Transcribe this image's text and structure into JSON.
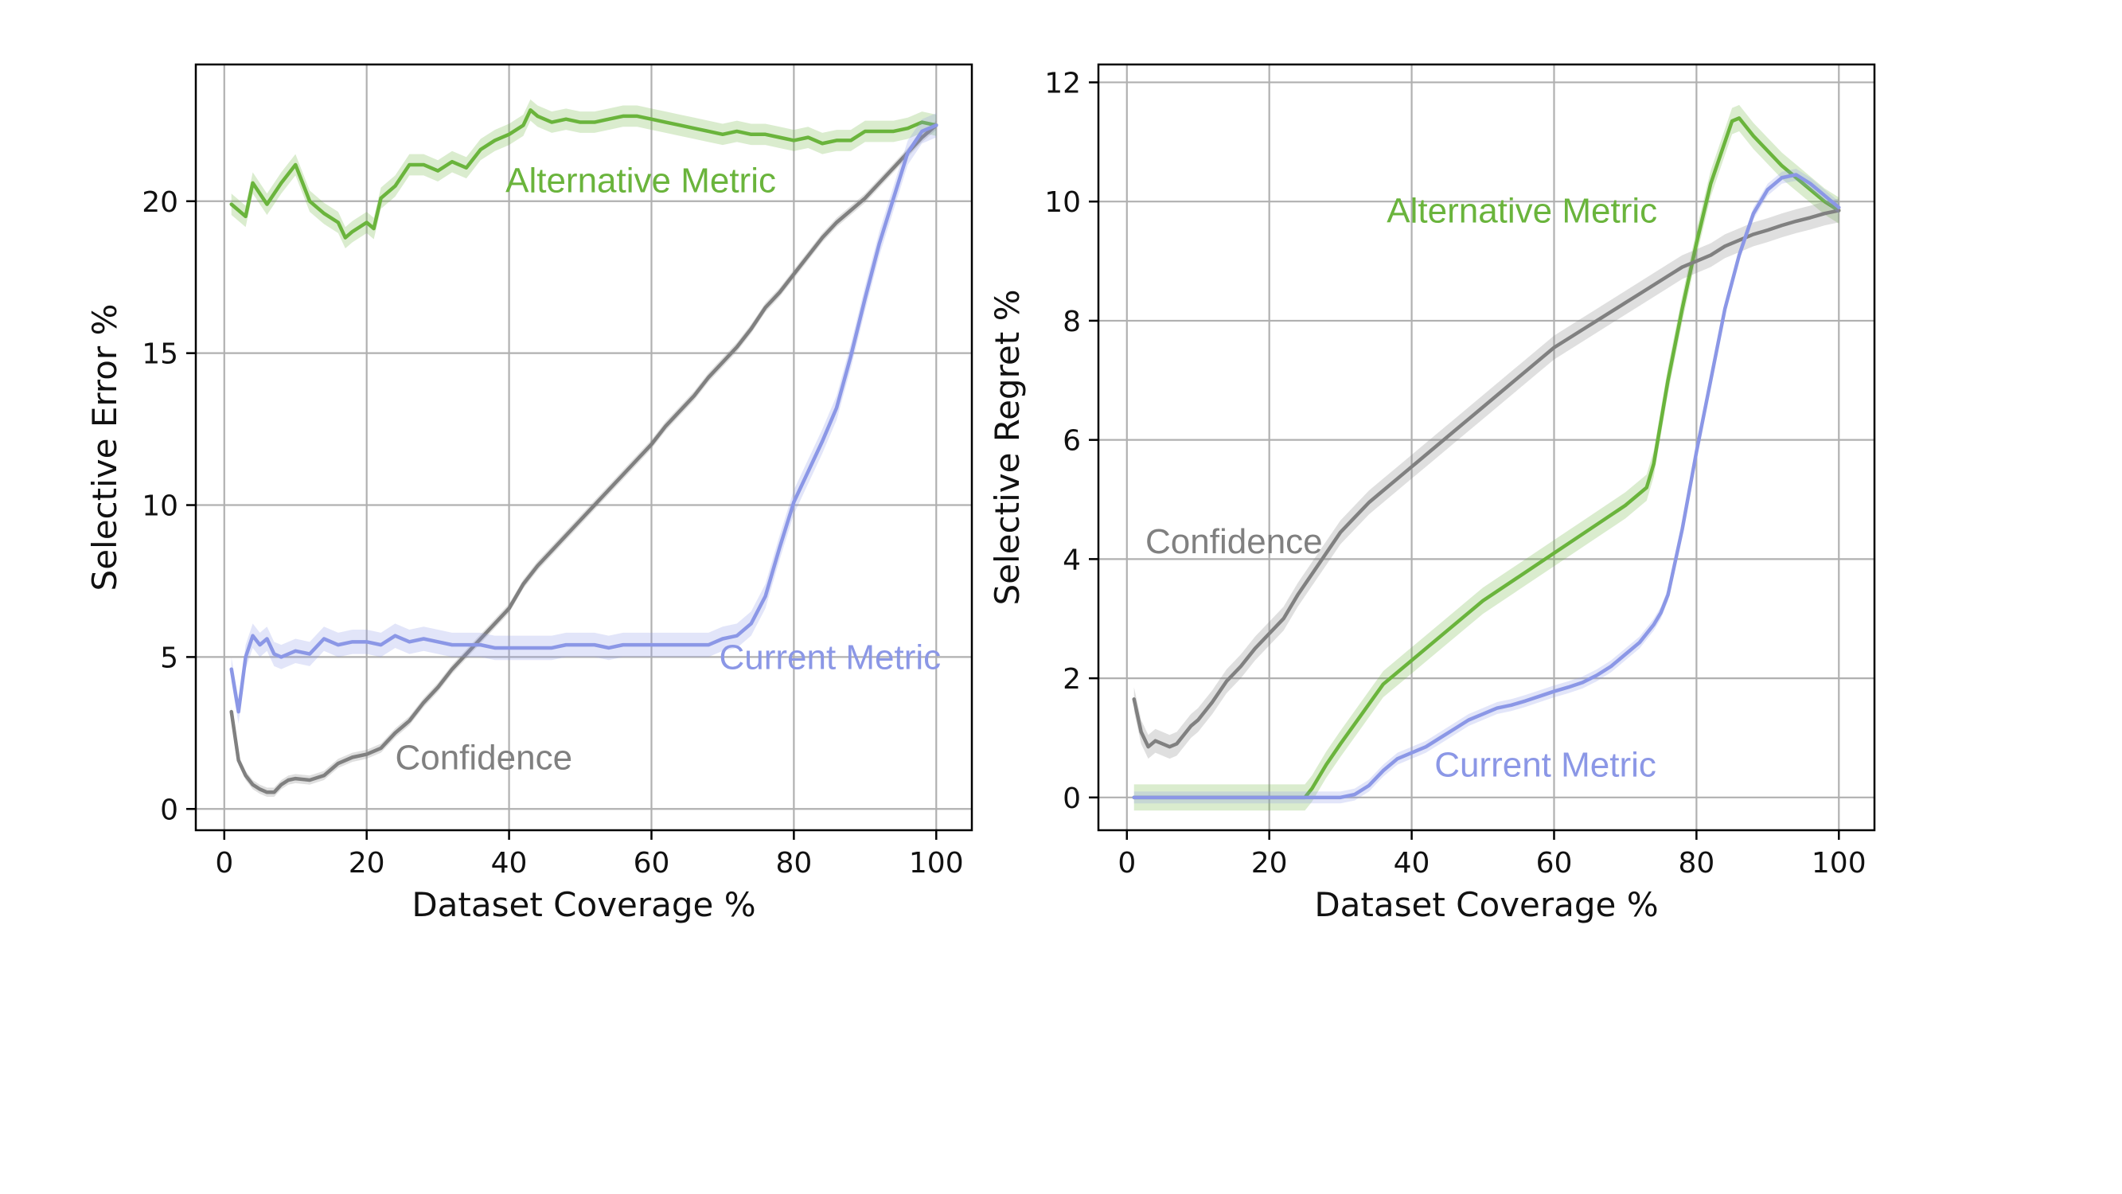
{
  "chart_data": [
    {
      "type": "line",
      "xlabel": "Dataset Coverage %",
      "ylabel": "Selective Error %",
      "xlim": [
        -4,
        105
      ],
      "ylim": [
        -0.7,
        24.5
      ],
      "xticks": [
        0,
        20,
        40,
        60,
        80,
        100
      ],
      "yticks": [
        0,
        5,
        10,
        15,
        20
      ],
      "grid": true,
      "series": [
        {
          "name": "Alternative Metric",
          "color": "#6ab43c",
          "band": 0.35,
          "x": [
            1,
            3,
            4,
            6,
            8,
            10,
            12,
            14,
            16,
            17,
            18,
            20,
            21,
            22,
            24,
            26,
            28,
            30,
            32,
            34,
            36,
            38,
            40,
            42,
            43,
            44,
            46,
            48,
            50,
            52,
            54,
            56,
            58,
            60,
            62,
            64,
            66,
            68,
            70,
            72,
            74,
            76,
            78,
            80,
            82,
            84,
            86,
            88,
            90,
            92,
            94,
            96,
            98,
            100
          ],
          "y": [
            19.9,
            19.5,
            20.6,
            19.9,
            20.6,
            21.2,
            20.0,
            19.6,
            19.3,
            18.8,
            19.0,
            19.3,
            19.1,
            20.1,
            20.5,
            21.2,
            21.2,
            21.0,
            21.3,
            21.1,
            21.7,
            22.0,
            22.2,
            22.5,
            23.0,
            22.8,
            22.6,
            22.7,
            22.6,
            22.6,
            22.7,
            22.8,
            22.8,
            22.7,
            22.6,
            22.5,
            22.4,
            22.3,
            22.2,
            22.3,
            22.2,
            22.2,
            22.1,
            22.0,
            22.1,
            21.9,
            22.0,
            22.0,
            22.3,
            22.3,
            22.3,
            22.4,
            22.6,
            22.5
          ]
        },
        {
          "name": "Confidence",
          "color": "#808080",
          "band": 0.15,
          "x": [
            1,
            2,
            3,
            4,
            5,
            6,
            7,
            8,
            9,
            10,
            12,
            14,
            16,
            18,
            20,
            22,
            24,
            26,
            28,
            30,
            32,
            34,
            36,
            38,
            40,
            42,
            44,
            46,
            48,
            50,
            52,
            54,
            56,
            58,
            60,
            62,
            64,
            66,
            68,
            70,
            72,
            74,
            76,
            78,
            80,
            82,
            84,
            86,
            88,
            90,
            92,
            94,
            96,
            98,
            100
          ],
          "y": [
            3.2,
            1.6,
            1.1,
            0.8,
            0.65,
            0.55,
            0.55,
            0.8,
            0.95,
            1.0,
            0.95,
            1.1,
            1.5,
            1.7,
            1.8,
            2.0,
            2.5,
            2.9,
            3.5,
            4.0,
            4.6,
            5.1,
            5.6,
            6.1,
            6.6,
            7.4,
            8.0,
            8.5,
            9.0,
            9.5,
            10.0,
            10.5,
            11.0,
            11.5,
            12.0,
            12.6,
            13.1,
            13.6,
            14.2,
            14.7,
            15.2,
            15.8,
            16.5,
            17.0,
            17.6,
            18.2,
            18.8,
            19.3,
            19.7,
            20.1,
            20.6,
            21.1,
            21.6,
            22.1,
            22.5
          ]
        },
        {
          "name": "Current Metric",
          "color": "#8b97e6",
          "band": 0.4,
          "x": [
            1,
            2,
            3,
            4,
            5,
            6,
            7,
            8,
            10,
            12,
            14,
            16,
            18,
            20,
            22,
            24,
            26,
            28,
            30,
            32,
            34,
            36,
            38,
            40,
            42,
            44,
            46,
            48,
            50,
            52,
            54,
            56,
            58,
            60,
            62,
            64,
            66,
            68,
            70,
            72,
            74,
            76,
            78,
            80,
            82,
            84,
            86,
            88,
            90,
            92,
            94,
            96,
            98,
            100
          ],
          "y": [
            4.6,
            3.2,
            5.0,
            5.7,
            5.4,
            5.6,
            5.1,
            5.0,
            5.2,
            5.1,
            5.6,
            5.4,
            5.5,
            5.5,
            5.4,
            5.7,
            5.5,
            5.6,
            5.5,
            5.4,
            5.4,
            5.4,
            5.3,
            5.3,
            5.3,
            5.3,
            5.3,
            5.4,
            5.4,
            5.4,
            5.3,
            5.4,
            5.4,
            5.4,
            5.4,
            5.4,
            5.4,
            5.4,
            5.6,
            5.7,
            6.1,
            7.0,
            8.6,
            10.1,
            11.1,
            12.1,
            13.2,
            14.9,
            16.8,
            18.6,
            20.1,
            21.6,
            22.3,
            22.5
          ]
        }
      ],
      "annotations": [
        {
          "text": "Alternative Metric",
          "x": 39.5,
          "y": 20.3,
          "color": "#6ab43c"
        },
        {
          "text": "Current Metric",
          "x": 69.5,
          "y": 4.6,
          "color": "#8b97e6"
        },
        {
          "text": "Confidence",
          "x": 24,
          "y": 1.3,
          "color": "#808080"
        }
      ]
    },
    {
      "type": "line",
      "xlabel": "Dataset Coverage %",
      "ylabel": "Selective Regret %",
      "xlim": [
        -4,
        105
      ],
      "ylim": [
        -0.55,
        12.3
      ],
      "xticks": [
        0,
        20,
        40,
        60,
        80,
        100
      ],
      "yticks": [
        0,
        2,
        4,
        6,
        8,
        10,
        12
      ],
      "grid": true,
      "series": [
        {
          "name": "Alternative Metric",
          "color": "#6ab43c",
          "band": 0.22,
          "x": [
            1,
            5,
            10,
            15,
            20,
            25,
            26,
            28,
            30,
            33,
            36,
            40,
            45,
            50,
            55,
            60,
            65,
            70,
            73,
            74,
            76,
            78,
            80,
            82,
            84,
            85,
            86,
            88,
            90,
            92,
            94,
            96,
            98,
            100
          ],
          "y": [
            0,
            0,
            0,
            0,
            0,
            0,
            0.15,
            0.55,
            0.9,
            1.4,
            1.9,
            2.3,
            2.8,
            3.3,
            3.7,
            4.1,
            4.5,
            4.9,
            5.2,
            5.6,
            7.0,
            8.2,
            9.3,
            10.3,
            11.0,
            11.35,
            11.4,
            11.1,
            10.85,
            10.6,
            10.4,
            10.2,
            10.0,
            9.85
          ]
        },
        {
          "name": "Confidence",
          "color": "#808080",
          "band": 0.2,
          "x": [
            1,
            2,
            3,
            4,
            5,
            6,
            7,
            8,
            9,
            10,
            12,
            14,
            16,
            18,
            20,
            22,
            24,
            26,
            28,
            30,
            32,
            34,
            36,
            38,
            40,
            42,
            44,
            46,
            48,
            50,
            52,
            54,
            56,
            58,
            60,
            62,
            64,
            66,
            68,
            70,
            72,
            74,
            76,
            78,
            80,
            82,
            84,
            86,
            88,
            90,
            92,
            94,
            96,
            98,
            100
          ],
          "y": [
            1.65,
            1.1,
            0.85,
            0.95,
            0.9,
            0.85,
            0.9,
            1.05,
            1.2,
            1.3,
            1.6,
            1.95,
            2.2,
            2.5,
            2.75,
            3.0,
            3.4,
            3.75,
            4.1,
            4.45,
            4.7,
            4.95,
            5.15,
            5.35,
            5.55,
            5.75,
            5.95,
            6.15,
            6.35,
            6.55,
            6.75,
            6.95,
            7.15,
            7.35,
            7.55,
            7.7,
            7.85,
            8.0,
            8.15,
            8.3,
            8.45,
            8.6,
            8.75,
            8.9,
            9.0,
            9.1,
            9.25,
            9.35,
            9.45,
            9.52,
            9.6,
            9.67,
            9.73,
            9.8,
            9.85
          ]
        },
        {
          "name": "Current Metric",
          "color": "#8b97e6",
          "band": 0.1,
          "x": [
            1,
            5,
            10,
            15,
            20,
            25,
            30,
            32,
            34,
            36,
            38,
            40,
            42,
            44,
            46,
            48,
            50,
            52,
            54,
            56,
            58,
            60,
            62,
            64,
            66,
            68,
            70,
            72,
            74,
            75,
            76,
            78,
            80,
            82,
            84,
            86,
            88,
            90,
            92,
            94,
            96,
            98,
            100
          ],
          "y": [
            0,
            0,
            0,
            0,
            0,
            0,
            0,
            0.05,
            0.2,
            0.45,
            0.65,
            0.75,
            0.85,
            1.0,
            1.15,
            1.3,
            1.4,
            1.5,
            1.55,
            1.62,
            1.7,
            1.78,
            1.85,
            1.93,
            2.05,
            2.2,
            2.4,
            2.6,
            2.9,
            3.1,
            3.4,
            4.5,
            5.8,
            7.0,
            8.2,
            9.1,
            9.8,
            10.2,
            10.4,
            10.45,
            10.3,
            10.1,
            9.9
          ]
        }
      ],
      "annotations": [
        {
          "text": "Alternative Metric",
          "x": 36.5,
          "y": 9.65,
          "color": "#6ab43c"
        },
        {
          "text": "Confidence",
          "x": 2.6,
          "y": 4.1,
          "color": "#808080"
        },
        {
          "text": "Current Metric",
          "x": 43.2,
          "y": 0.35,
          "color": "#8b97e6"
        }
      ]
    }
  ]
}
